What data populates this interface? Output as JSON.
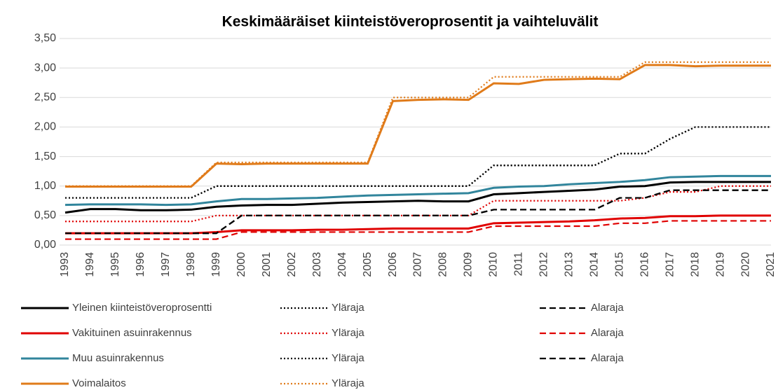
{
  "chart_data": {
    "type": "line",
    "title": "Keskimääräiset kiinteistöveroprosentit ja vaihteluvälit",
    "categories": [
      "1993",
      "1994",
      "1995",
      "1996",
      "1997",
      "1998",
      "1999",
      "2000",
      "2001",
      "2002",
      "2003",
      "2004",
      "2005",
      "2006",
      "2007",
      "2008",
      "2009",
      "2010",
      "2011",
      "2012",
      "2013",
      "2014",
      "2015",
      "2016",
      "2017",
      "2018",
      "2019",
      "2020",
      "2021"
    ],
    "ylim": [
      0,
      3.5
    ],
    "yticks": [
      {
        "value": 0,
        "label": "0,00"
      },
      {
        "value": 0.5,
        "label": "0,50"
      },
      {
        "value": 1,
        "label": "1,00"
      },
      {
        "value": 1.5,
        "label": "1,50"
      },
      {
        "value": 2,
        "label": "2,00"
      },
      {
        "value": 2.5,
        "label": "2,50"
      },
      {
        "value": 3,
        "label": "3,00"
      },
      {
        "value": 3.5,
        "label": "3,50"
      }
    ],
    "series": [
      {
        "name": "Yleinen kiinteistöveroprosentti",
        "color": "#000000",
        "dash": "solid",
        "values": [
          0.55,
          0.61,
          0.61,
          0.59,
          0.59,
          0.6,
          0.65,
          0.67,
          0.68,
          0.68,
          0.7,
          0.72,
          0.73,
          0.74,
          0.75,
          0.74,
          0.74,
          0.86,
          0.88,
          0.9,
          0.92,
          0.94,
          0.99,
          1.0,
          1.06,
          1.07,
          1.07,
          1.07,
          1.07
        ]
      },
      {
        "name": "Yläraja",
        "color": "#000000",
        "dash": "dotted",
        "values": [
          0.8,
          0.8,
          0.8,
          0.8,
          0.8,
          0.8,
          1.0,
          1.0,
          1.0,
          1.0,
          1.0,
          1.0,
          1.0,
          1.0,
          1.0,
          1.0,
          1.0,
          1.35,
          1.35,
          1.35,
          1.35,
          1.35,
          1.55,
          1.55,
          1.8,
          2.0,
          2.0,
          2.0,
          2.0
        ]
      },
      {
        "name": "Alaraja",
        "color": "#000000",
        "dash": "dashed",
        "values": [
          0.2,
          0.2,
          0.2,
          0.2,
          0.2,
          0.2,
          0.2,
          0.5,
          0.5,
          0.5,
          0.5,
          0.5,
          0.5,
          0.5,
          0.5,
          0.5,
          0.5,
          0.6,
          0.6,
          0.6,
          0.6,
          0.6,
          0.8,
          0.8,
          0.93,
          0.93,
          0.93,
          0.93,
          0.93
        ]
      },
      {
        "name": "Vakituinen asuinrakennus",
        "color": "#e00000",
        "dash": "solid",
        "values": [
          0.2,
          0.2,
          0.2,
          0.2,
          0.2,
          0.2,
          0.22,
          0.25,
          0.25,
          0.25,
          0.26,
          0.26,
          0.27,
          0.28,
          0.28,
          0.28,
          0.28,
          0.37,
          0.38,
          0.39,
          0.4,
          0.42,
          0.45,
          0.46,
          0.49,
          0.49,
          0.5,
          0.5,
          0.5
        ]
      },
      {
        "name": "Yläraja",
        "color": "#e00000",
        "dash": "dotted",
        "values": [
          0.4,
          0.4,
          0.4,
          0.4,
          0.4,
          0.4,
          0.5,
          0.5,
          0.5,
          0.5,
          0.5,
          0.5,
          0.5,
          0.5,
          0.5,
          0.5,
          0.5,
          0.75,
          0.75,
          0.75,
          0.75,
          0.75,
          0.75,
          0.8,
          0.9,
          0.9,
          1.0,
          1.0,
          1.0
        ]
      },
      {
        "name": "Alaraja",
        "color": "#e00000",
        "dash": "dashed",
        "values": [
          0.1,
          0.1,
          0.1,
          0.1,
          0.1,
          0.1,
          0.1,
          0.22,
          0.22,
          0.22,
          0.22,
          0.22,
          0.22,
          0.22,
          0.22,
          0.22,
          0.22,
          0.32,
          0.32,
          0.32,
          0.32,
          0.32,
          0.37,
          0.37,
          0.41,
          0.41,
          0.41,
          0.41,
          0.41
        ]
      },
      {
        "name": "Muu asuinrakennus",
        "color": "#31859c",
        "dash": "solid",
        "values": [
          0.68,
          0.69,
          0.69,
          0.69,
          0.68,
          0.69,
          0.74,
          0.78,
          0.78,
          0.79,
          0.8,
          0.82,
          0.84,
          0.85,
          0.86,
          0.87,
          0.88,
          0.97,
          0.99,
          1.0,
          1.03,
          1.05,
          1.07,
          1.1,
          1.15,
          1.16,
          1.17,
          1.17,
          1.17
        ]
      },
      {
        "name": "Yläraja",
        "color": "#000000",
        "dash": "dotted",
        "values": [
          0.8,
          0.8,
          0.8,
          0.8,
          0.8,
          0.8,
          1.0,
          1.0,
          1.0,
          1.0,
          1.0,
          1.0,
          1.0,
          1.0,
          1.0,
          1.0,
          1.0,
          1.35,
          1.35,
          1.35,
          1.35,
          1.35,
          1.55,
          1.55,
          1.8,
          2.0,
          2.0,
          2.0,
          2.0
        ]
      },
      {
        "name": "Alaraja",
        "color": "#000000",
        "dash": "dashed",
        "values": [
          0.2,
          0.2,
          0.2,
          0.2,
          0.2,
          0.2,
          0.2,
          0.5,
          0.5,
          0.5,
          0.5,
          0.5,
          0.5,
          0.5,
          0.5,
          0.5,
          0.5,
          0.6,
          0.6,
          0.6,
          0.6,
          0.6,
          0.8,
          0.8,
          0.93,
          0.93,
          0.93,
          0.93,
          0.93
        ]
      },
      {
        "name": "Voimalaitos",
        "color": "#e07b1a",
        "dash": "solid",
        "values": [
          0.99,
          0.99,
          0.99,
          0.99,
          0.99,
          0.99,
          1.38,
          1.37,
          1.38,
          1.38,
          1.38,
          1.38,
          1.38,
          2.44,
          2.46,
          2.47,
          2.46,
          2.74,
          2.73,
          2.8,
          2.81,
          2.82,
          2.81,
          3.05,
          3.05,
          3.03,
          3.04,
          3.04,
          3.04
        ]
      },
      {
        "name": "Yläraja",
        "color": "#e07b1a",
        "dash": "dotted",
        "values": [
          1.0,
          1.0,
          1.0,
          1.0,
          1.0,
          1.0,
          1.4,
          1.4,
          1.4,
          1.4,
          1.4,
          1.4,
          1.4,
          2.5,
          2.5,
          2.5,
          2.5,
          2.85,
          2.85,
          2.85,
          2.85,
          2.85,
          2.85,
          3.1,
          3.1,
          3.1,
          3.1,
          3.1,
          3.1
        ]
      }
    ]
  }
}
